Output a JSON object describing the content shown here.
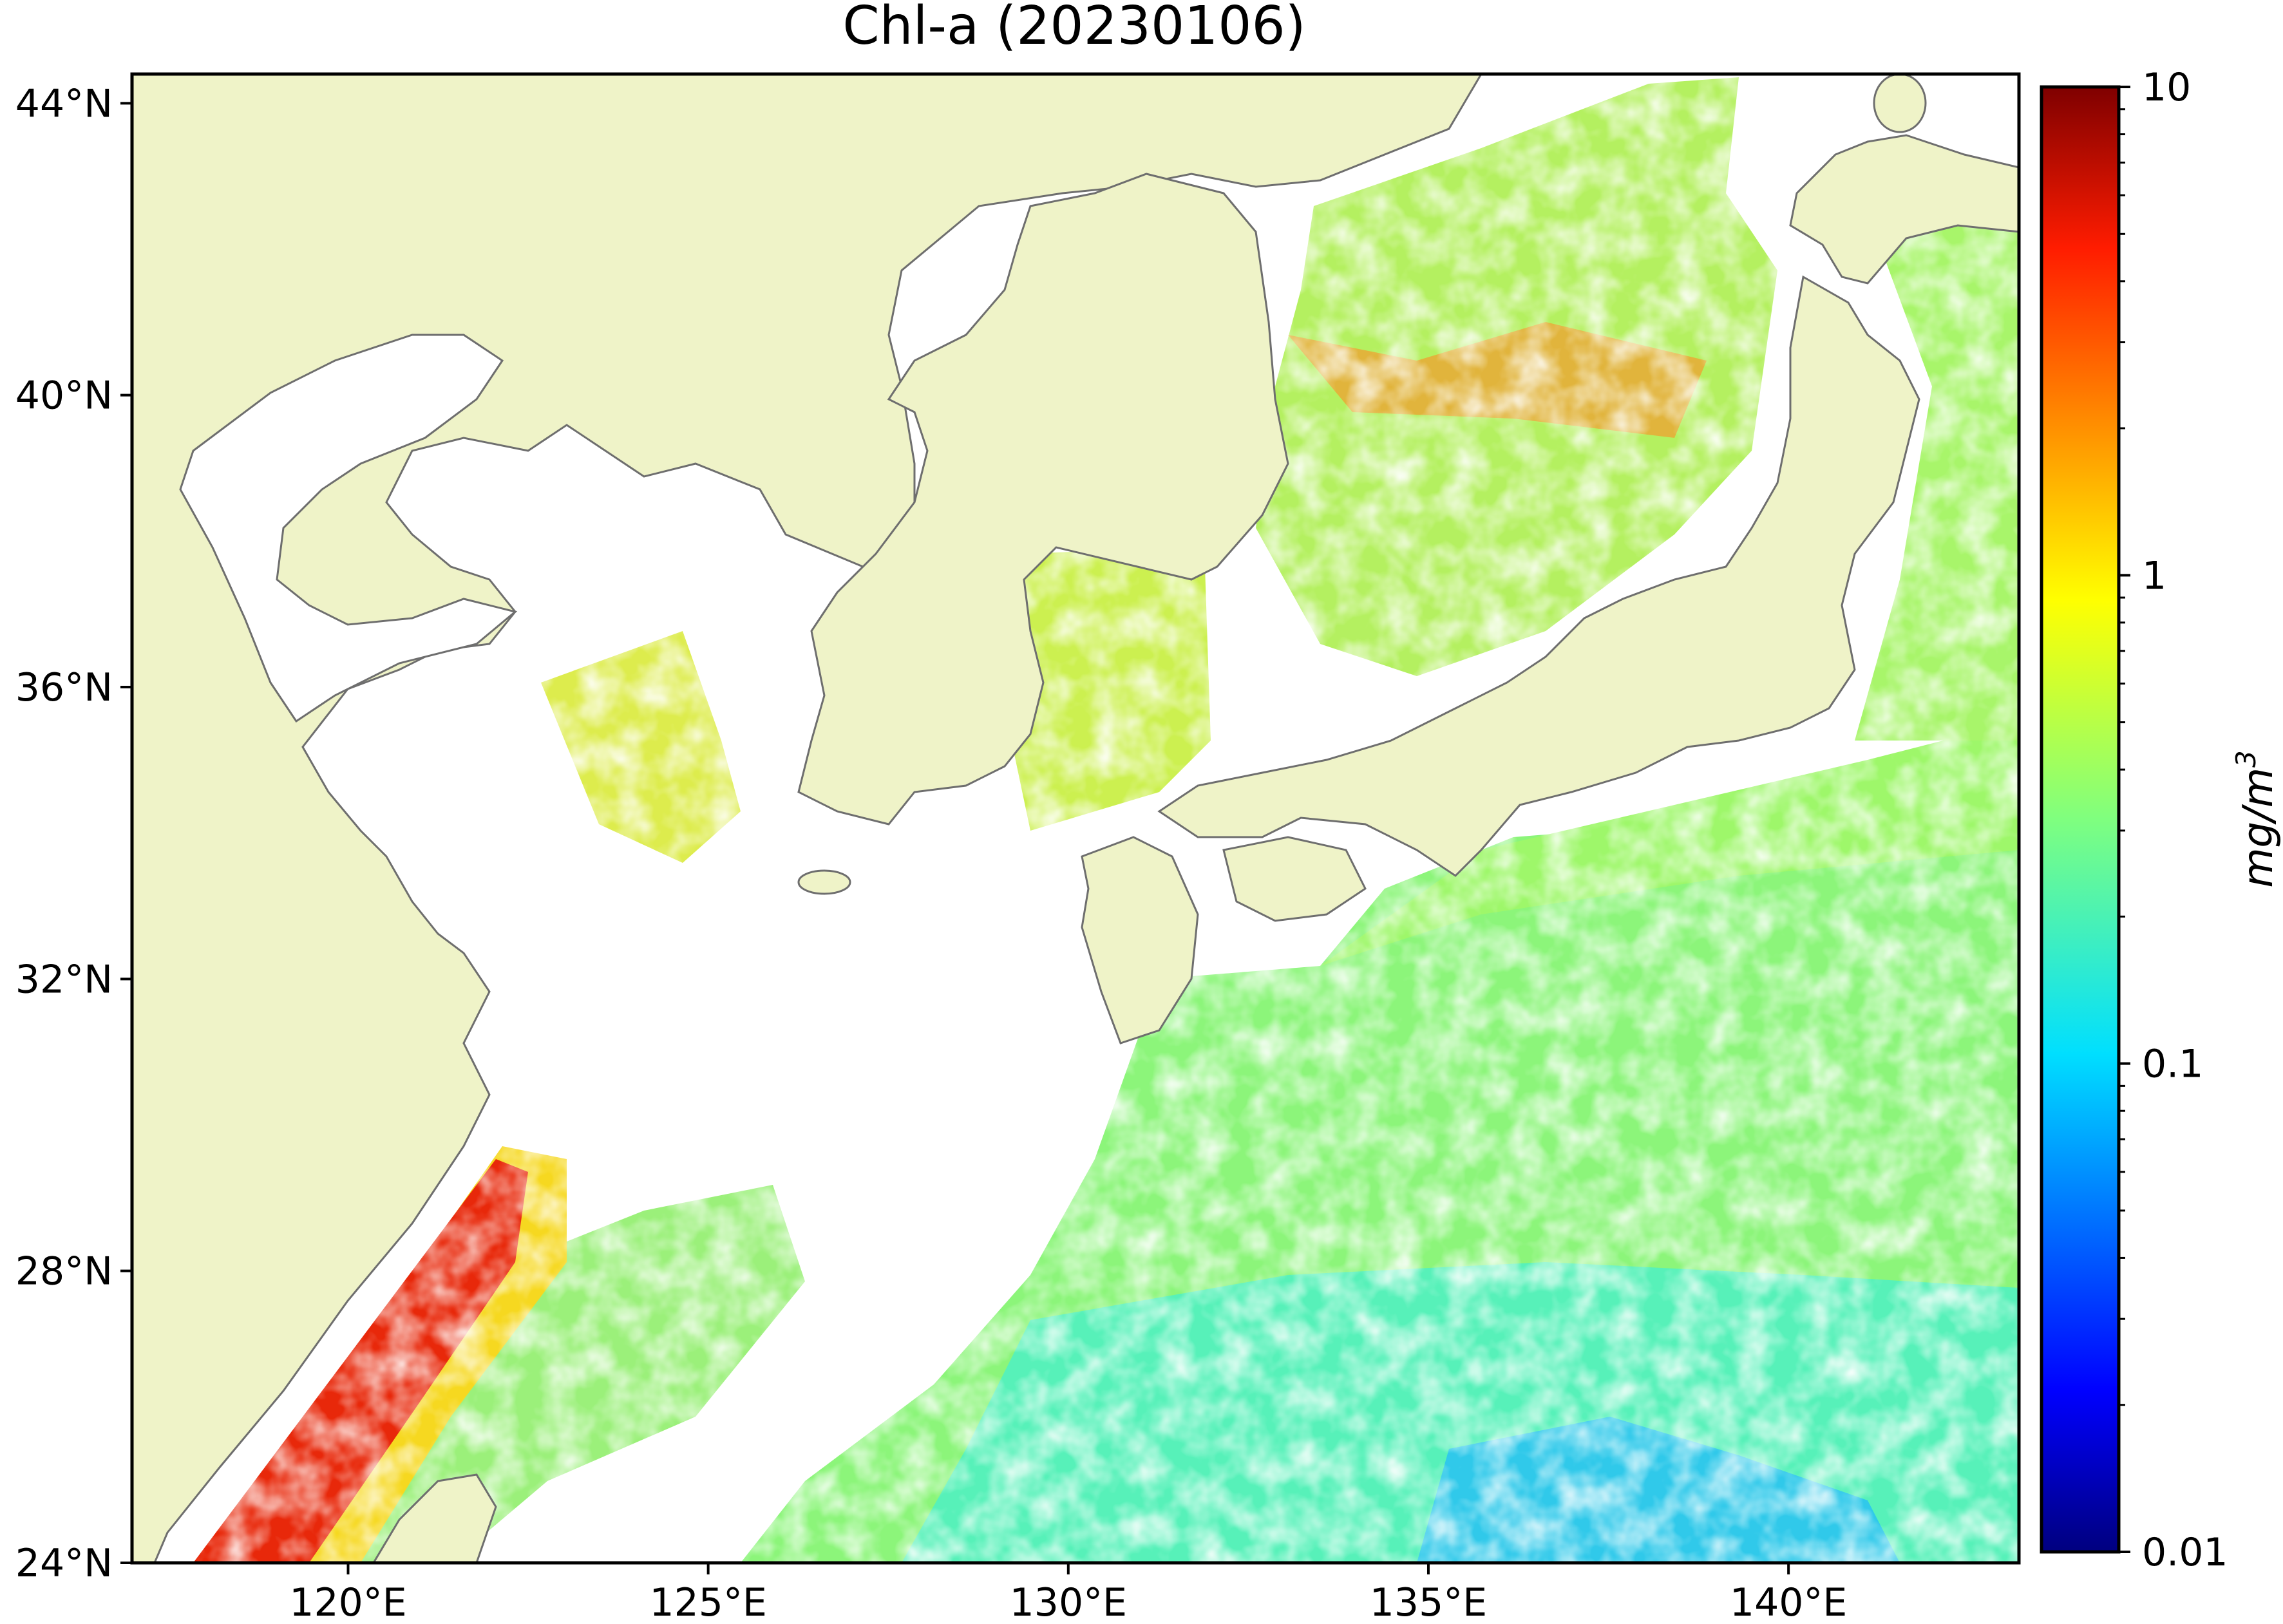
{
  "chart_data": {
    "type": "heatmap",
    "title": "Chl-a (20230106)",
    "x_axis": {
      "ticks": [
        {
          "value": 120,
          "label": "120°E"
        },
        {
          "value": 125,
          "label": "125°E"
        },
        {
          "value": 130,
          "label": "130°E"
        },
        {
          "value": 135,
          "label": "135°E"
        },
        {
          "value": 140,
          "label": "140°E"
        }
      ],
      "range": [
        117.0,
        143.2
      ]
    },
    "y_axis": {
      "ticks": [
        {
          "value": 24,
          "label": "24°N"
        },
        {
          "value": 28,
          "label": "28°N"
        },
        {
          "value": 32,
          "label": "32°N"
        },
        {
          "value": 36,
          "label": "36°N"
        },
        {
          "value": 40,
          "label": "40°N"
        },
        {
          "value": 44,
          "label": "44°N"
        }
      ],
      "range": [
        24.0,
        44.4
      ]
    },
    "colorbar": {
      "label_base": "mg/m",
      "label_exp": "3",
      "scale": "log",
      "range": [
        0.01,
        10
      ],
      "ticks": [
        {
          "value": 10,
          "label": "10"
        },
        {
          "value": 1,
          "label": "1"
        },
        {
          "value": 0.1,
          "label": "0.1"
        },
        {
          "value": 0.01,
          "label": "0.01"
        }
      ],
      "colormap": "jet"
    },
    "colors": {
      "land": "#eff3c8",
      "no_data": "#ffffff",
      "coastline": "#6e6e6e",
      "frame": "#000000"
    }
  }
}
